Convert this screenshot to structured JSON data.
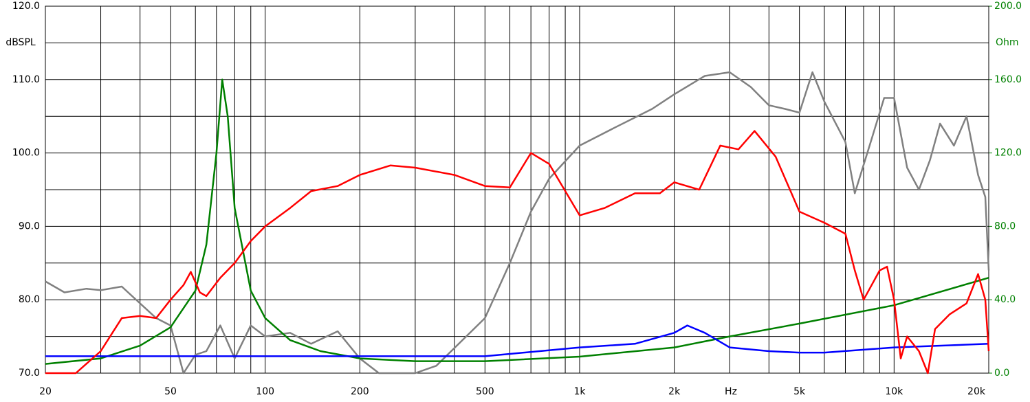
{
  "chart_data": {
    "type": "line",
    "x_label": "Hz",
    "y_label": "dBSPL",
    "y2_label": "Ohm",
    "log_x": true,
    "grid": true,
    "xlim": [
      20,
      20000
    ],
    "xticks": [
      20,
      50,
      100,
      200,
      500,
      {
        "value": 1000,
        "label": "1k"
      },
      {
        "value": 2000,
        "label": "2k"
      },
      {
        "value": 5000,
        "label": "5k"
      },
      {
        "value": 10000,
        "label": "10k"
      },
      {
        "value": 20000,
        "label": "20k"
      }
    ],
    "x_minor_grid": [
      30,
      40,
      60,
      70,
      80,
      90,
      300,
      400,
      600,
      700,
      800,
      900,
      3000,
      4000,
      6000,
      7000,
      8000,
      9000
    ],
    "ylim": [
      70,
      120
    ],
    "yticks": [
      {
        "value": 70,
        "label": "70.0"
      },
      {
        "value": 80,
        "label": "80.0"
      },
      {
        "value": 90,
        "label": "90.0"
      },
      {
        "value": 100,
        "label": "100.0"
      },
      {
        "value": 110,
        "label": "110.0"
      },
      {
        "value": 120,
        "label": "120.0"
      }
    ],
    "y_minor_grid": [
      75,
      85,
      95,
      105,
      115
    ],
    "y2lim": [
      0,
      200
    ],
    "y2ticks": [
      {
        "value": 0,
        "label": "0.0"
      },
      {
        "value": 40,
        "label": "40.0"
      },
      {
        "value": 80,
        "label": "80.0"
      },
      {
        "value": 120,
        "label": "120.0"
      },
      {
        "value": 160,
        "label": "160.0"
      },
      {
        "value": 200,
        "label": "200.0"
      }
    ],
    "series": [
      {
        "color": "#ff0000",
        "x": [
          20,
          25,
          30,
          35,
          40,
          45,
          50,
          55,
          58,
          62,
          65,
          72,
          80,
          90,
          100,
          120,
          140,
          170,
          200,
          250,
          300,
          400,
          500,
          600,
          700,
          800,
          1000,
          1200,
          1500,
          1800,
          2000,
          2400,
          2800,
          3200,
          3600,
          4200,
          5000,
          6000,
          7000,
          7500,
          8000,
          9000,
          9500,
          10000,
          10500,
          11000,
          12000,
          12800,
          13500,
          15000,
          17000,
          18500,
          19500,
          20000
        ],
        "values": [
          70,
          70,
          73,
          77.5,
          77.8,
          77.5,
          80,
          82,
          83.8,
          81,
          80.5,
          83,
          85,
          88,
          90,
          92.5,
          94.8,
          95.5,
          97,
          98.3,
          98,
          97,
          95.5,
          95.3,
          100,
          98.5,
          91.5,
          92.5,
          94.5,
          94.5,
          96,
          95,
          101,
          100.5,
          103,
          99.5,
          92,
          90.5,
          89,
          84,
          80,
          84,
          84.5,
          80,
          72,
          75,
          73,
          70,
          76,
          78,
          79.5,
          83.5,
          80,
          73
        ]
      },
      {
        "color": "#808080",
        "x": [
          20,
          23,
          27,
          30,
          35,
          40,
          45,
          50,
          55,
          60,
          65,
          72,
          80,
          90,
          100,
          120,
          140,
          170,
          200,
          230,
          300,
          350,
          500,
          600,
          700,
          800,
          1000,
          1300,
          1700,
          2000,
          2500,
          3000,
          3500,
          4000,
          4500,
          5000,
          5500,
          6000,
          7000,
          7500,
          8500,
          9300,
          10000,
          11000,
          12000,
          13000,
          14000,
          15500,
          17000,
          18500,
          19500,
          20000
        ],
        "values": [
          82.5,
          81,
          81.5,
          81.3,
          81.8,
          79.5,
          77.5,
          76.5,
          70,
          72.5,
          73,
          76.5,
          72,
          76.5,
          75,
          75.5,
          74,
          75.7,
          72,
          70,
          70,
          71,
          77.5,
          85,
          92,
          96.5,
          101,
          103.5,
          106,
          108,
          110.5,
          111,
          109,
          106.5,
          106,
          105.5,
          111,
          107,
          101.5,
          94.5,
          102,
          107.5,
          107.5,
          98,
          95,
          99,
          104,
          101,
          105,
          97,
          94,
          84
        ]
      },
      {
        "color": "#0000ff",
        "x": [
          20,
          500,
          1000,
          1500,
          2000,
          2200,
          2500,
          3000,
          4000,
          5000,
          6000,
          10000,
          20000
        ],
        "values": [
          72.3,
          72.3,
          73.5,
          74,
          75.5,
          76.5,
          75.5,
          73.5,
          73,
          72.8,
          72.8,
          73.5,
          74
        ]
      },
      {
        "color": "#008000",
        "axis": "y2",
        "x": [
          20,
          30,
          40,
          50,
          60,
          65,
          70,
          73,
          76,
          80,
          90,
          100,
          120,
          150,
          200,
          300,
          500,
          1000,
          2000,
          3000,
          5000,
          10000,
          20000
        ],
        "values": [
          5,
          8,
          15,
          25,
          45,
          70,
          120,
          160,
          140,
          90,
          45,
          30,
          18,
          12,
          8,
          6.5,
          6.5,
          9,
          14,
          20,
          27,
          37,
          52
        ]
      }
    ]
  }
}
